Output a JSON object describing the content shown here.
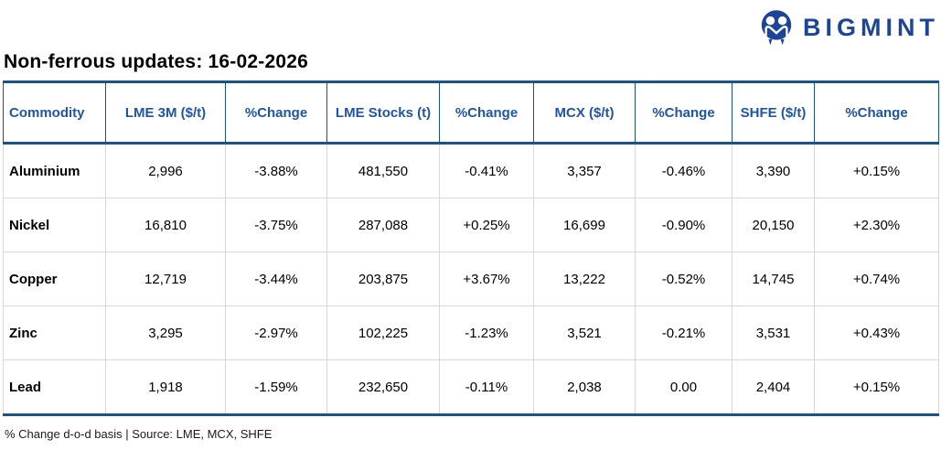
{
  "brand": {
    "name": "BIGMINT",
    "icon": "bigmint-people-m-icon",
    "color": "#1C4499"
  },
  "title": "Non-ferrous updates: 16-02-2026",
  "table": {
    "columns": [
      "Commodity",
      "LME 3M ($/t)",
      "%Change",
      "LME Stocks (t)",
      "%Change",
      "MCX ($/t)",
      "%Change",
      "SHFE ($/t)",
      "%Change"
    ],
    "row_keys": [
      "commodity",
      "lme_3m",
      "lme_3m_change",
      "lme_stocks",
      "lme_stocks_change",
      "mcx",
      "mcx_change",
      "shfe",
      "shfe_change"
    ],
    "change_columns": [
      2,
      4,
      6,
      8
    ],
    "rows": [
      {
        "commodity": "Aluminium",
        "lme_3m": "2,996",
        "lme_3m_change": "-3.88%",
        "lme_stocks": "481,550",
        "lme_stocks_change": "-0.41%",
        "mcx": "3,357",
        "mcx_change": "-0.46%",
        "shfe": "3,390",
        "shfe_change": "+0.15%"
      },
      {
        "commodity": "Nickel",
        "lme_3m": "16,810",
        "lme_3m_change": "-3.75%",
        "lme_stocks": "287,088",
        "lme_stocks_change": "+0.25%",
        "mcx": "16,699",
        "mcx_change": "-0.90%",
        "shfe": "20,150",
        "shfe_change": "+2.30%"
      },
      {
        "commodity": "Copper",
        "lme_3m": "12,719",
        "lme_3m_change": "-3.44%",
        "lme_stocks": "203,875",
        "lme_stocks_change": "+3.67%",
        "mcx": "13,222",
        "mcx_change": "-0.52%",
        "shfe": "14,745",
        "shfe_change": "+0.74%"
      },
      {
        "commodity": "Zinc",
        "lme_3m": "3,295",
        "lme_3m_change": "-2.97%",
        "lme_stocks": "102,225",
        "lme_stocks_change": "-1.23%",
        "mcx": "3,521",
        "mcx_change": "-0.21%",
        "shfe": "3,531",
        "shfe_change": "+0.43%"
      },
      {
        "commodity": "Lead",
        "lme_3m": "1,918",
        "lme_3m_change": "-1.59%",
        "lme_stocks": "232,650",
        "lme_stocks_change": "-0.11%",
        "mcx": "2,038",
        "mcx_change": "0.00",
        "shfe": "2,404",
        "shfe_change": "+0.15%"
      }
    ]
  },
  "footer": "% Change d-o-d basis | Source: LME, MCX, SHFE",
  "colors": {
    "header_text": "#1F55A5",
    "header_border": "#1B5288",
    "body_border": "#D8D8D8",
    "negative": "#E8333A",
    "positive": "#00A65D",
    "brand_blue": "#1C4499"
  }
}
